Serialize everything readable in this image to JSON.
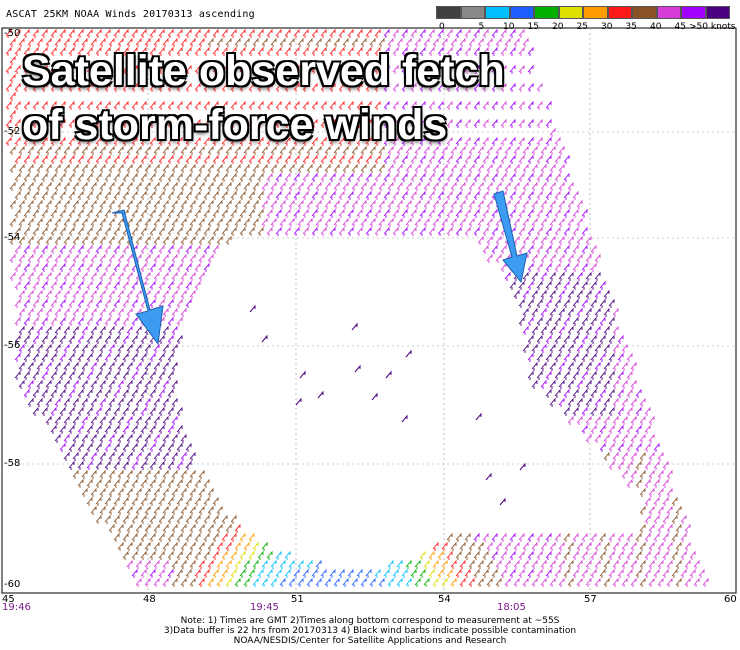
{
  "header": {
    "title": "ASCAT 25KM NOAA Winds 20170313 ascending"
  },
  "legend": {
    "labels": [
      "0",
      "5",
      "10",
      "15",
      "20",
      "25",
      "30",
      "35",
      "40",
      "45",
      ">50 knots"
    ],
    "colors": [
      "#404040",
      "#888888",
      "#00bfff",
      "#1f5fff",
      "#00b000",
      "#dfdf00",
      "#ff9c00",
      "#ff1a1a",
      "#8a5326",
      "#d63dd6",
      "#a300ff",
      "#4a0080"
    ]
  },
  "overlay": {
    "line1": "Satellite observed fetch",
    "line2": "of storm-force winds",
    "arrow_color": "#3c9cf2"
  },
  "axes": {
    "x_ticks": [
      "45",
      "48",
      "51",
      "54",
      "57",
      "60"
    ],
    "y_ticks": [
      "-50",
      "-52",
      "-54",
      "-56",
      "-58",
      "-60"
    ],
    "times": [
      "19:46",
      "19:45",
      "18:05"
    ]
  },
  "notes": {
    "line1": "Note: 1) Times are GMT 2)Times along bottom correspond to measurement at ~55S",
    "line2": "3)Data buffer is 22 hrs from 20170313 4) Black wind barbs indicate possible contamination",
    "line3": "NOAA/NESDIS/Center for Satellite Applications and Research"
  }
}
